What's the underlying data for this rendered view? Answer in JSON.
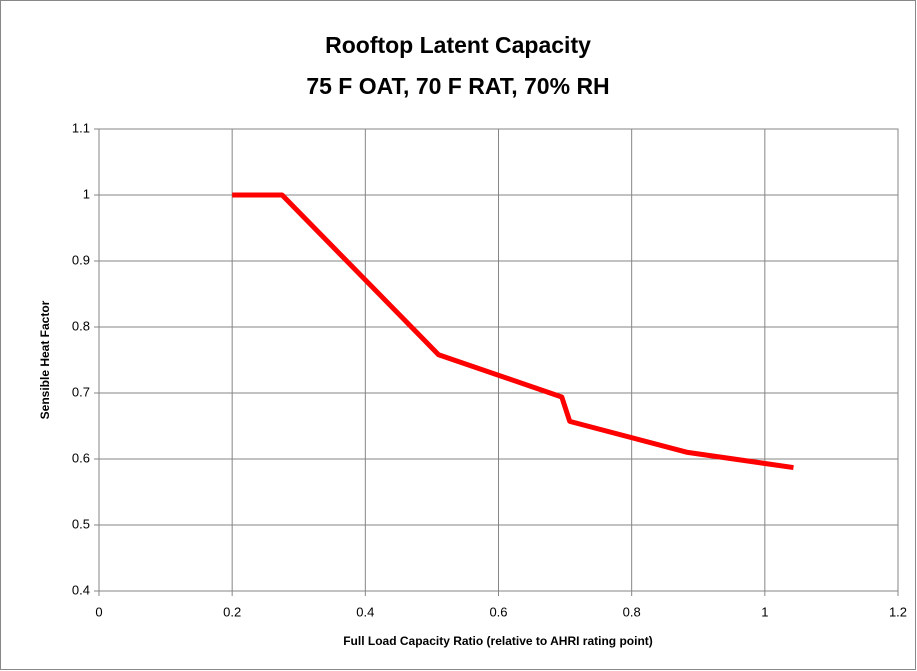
{
  "chart_data": {
    "type": "line",
    "title": "Rooftop Latent Capacity",
    "subtitle": "75 F OAT, 70 F RAT, 70% RH",
    "x_label": "Full Load Capacity  Ratio (relative to AHRI rating point)",
    "y_label": "Sensible Heat Factor",
    "x": [
      0.2,
      0.275,
      0.51,
      0.695,
      0.707,
      0.884,
      1.043
    ],
    "series": [
      {
        "name": "SHF",
        "color": "#ff0000",
        "values": [
          1.0,
          1.0,
          0.758,
          0.694,
          0.657,
          0.61,
          0.587
        ]
      }
    ],
    "xlim": [
      0,
      1.2
    ],
    "ylim": [
      0.4,
      1.1
    ],
    "xticks": [
      0,
      0.2,
      0.4,
      0.6,
      0.8,
      {
        "value": 1.0,
        "label": "1"
      },
      1.2
    ],
    "yticks": [
      0.4,
      0.5,
      0.6,
      0.7,
      0.8,
      0.9,
      {
        "value": 1.0,
        "label": "1"
      },
      1.1
    ],
    "grid": true
  }
}
